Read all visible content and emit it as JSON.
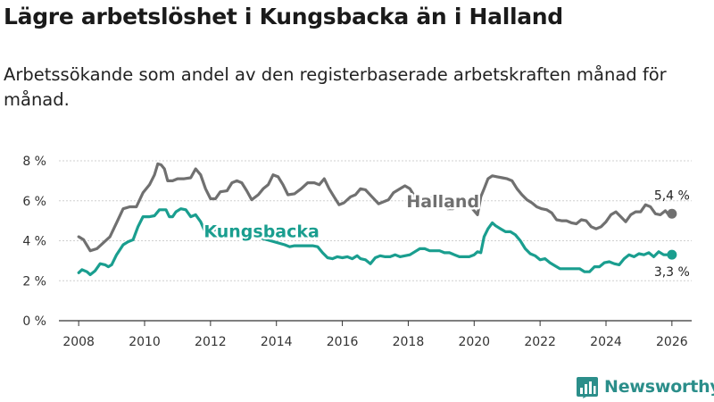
{
  "page": {
    "title": "Lägre arbetslöshet i Kungsbacka än i Halland",
    "subtitle": "Arbetssökande som andel av den registerbaserade arbetskraften månad för månad.",
    "brand": "Newsworthy"
  },
  "colors": {
    "halland": "#707070",
    "kungsbacka": "#1a9e8f",
    "axis": "#333333",
    "grid": "#cfcfcf",
    "brand": "#2b8e8a"
  },
  "chart_data": {
    "type": "line",
    "title": "Lägre arbetslöshet i Kungsbacka än i Halland",
    "xlabel": "",
    "ylabel": "",
    "xlim": [
      2007.4,
      2026.6
    ],
    "ylim": [
      0,
      8
    ],
    "y_ticks": [
      0,
      2,
      4,
      6,
      8
    ],
    "y_tick_labels": [
      "0 %",
      "2 %",
      "4 %",
      "6 %",
      "8 %"
    ],
    "x_ticks": [
      2008,
      2010,
      2012,
      2014,
      2016,
      2018,
      2020,
      2022,
      2024,
      2026
    ],
    "x_tick_labels": [
      "2008",
      "2010",
      "2012",
      "2014",
      "2016",
      "2018",
      "2020",
      "2022",
      "2024",
      "2026"
    ],
    "grid": "horizontal",
    "series": [
      {
        "name": "Halland",
        "color": "#707070",
        "end_label": "5,4 %",
        "points": [
          [
            2008.0,
            4.2
          ],
          [
            2008.15,
            4.05
          ],
          [
            2008.35,
            3.5
          ],
          [
            2008.55,
            3.6
          ],
          [
            2008.75,
            3.9
          ],
          [
            2008.95,
            4.2
          ],
          [
            2009.15,
            4.9
          ],
          [
            2009.35,
            5.6
          ],
          [
            2009.55,
            5.7
          ],
          [
            2009.75,
            5.7
          ],
          [
            2009.95,
            6.4
          ],
          [
            2010.15,
            6.8
          ],
          [
            2010.3,
            7.3
          ],
          [
            2010.4,
            7.85
          ],
          [
            2010.5,
            7.8
          ],
          [
            2010.6,
            7.6
          ],
          [
            2010.7,
            7.0
          ],
          [
            2010.85,
            7.0
          ],
          [
            2011.0,
            7.1
          ],
          [
            2011.2,
            7.1
          ],
          [
            2011.4,
            7.15
          ],
          [
            2011.55,
            7.6
          ],
          [
            2011.7,
            7.3
          ],
          [
            2011.85,
            6.6
          ],
          [
            2012.0,
            6.1
          ],
          [
            2012.15,
            6.1
          ],
          [
            2012.3,
            6.45
          ],
          [
            2012.5,
            6.5
          ],
          [
            2012.65,
            6.9
          ],
          [
            2012.8,
            7.0
          ],
          [
            2012.95,
            6.9
          ],
          [
            2013.1,
            6.5
          ],
          [
            2013.25,
            6.05
          ],
          [
            2013.45,
            6.3
          ],
          [
            2013.6,
            6.6
          ],
          [
            2013.75,
            6.8
          ],
          [
            2013.9,
            7.3
          ],
          [
            2014.05,
            7.2
          ],
          [
            2014.2,
            6.8
          ],
          [
            2014.35,
            6.3
          ],
          [
            2014.55,
            6.35
          ],
          [
            2014.75,
            6.6
          ],
          [
            2014.95,
            6.9
          ],
          [
            2015.15,
            6.9
          ],
          [
            2015.3,
            6.8
          ],
          [
            2015.45,
            7.1
          ],
          [
            2015.6,
            6.6
          ],
          [
            2015.75,
            6.2
          ],
          [
            2015.9,
            5.8
          ],
          [
            2016.05,
            5.9
          ],
          [
            2016.25,
            6.2
          ],
          [
            2016.4,
            6.3
          ],
          [
            2016.55,
            6.6
          ],
          [
            2016.7,
            6.55
          ],
          [
            2016.9,
            6.2
          ],
          [
            2017.1,
            5.85
          ],
          [
            2017.25,
            5.95
          ],
          [
            2017.4,
            6.05
          ],
          [
            2017.55,
            6.4
          ],
          [
            2017.75,
            6.6
          ],
          [
            2017.9,
            6.75
          ],
          [
            2018.05,
            6.6
          ],
          [
            2018.2,
            6.2
          ],
          [
            2018.35,
            5.95
          ],
          [
            2018.5,
            6.0
          ],
          [
            2018.7,
            6.15
          ],
          [
            2018.9,
            6.15
          ],
          [
            2019.05,
            5.9
          ],
          [
            2019.2,
            5.6
          ],
          [
            2019.35,
            5.6
          ],
          [
            2019.55,
            5.85
          ],
          [
            2019.75,
            5.85
          ],
          [
            2019.95,
            5.6
          ],
          [
            2020.1,
            5.3
          ],
          [
            2020.2,
            6.2
          ],
          [
            2020.3,
            6.6
          ],
          [
            2020.42,
            7.1
          ],
          [
            2020.55,
            7.25
          ],
          [
            2020.7,
            7.2
          ],
          [
            2020.85,
            7.15
          ],
          [
            2021.0,
            7.1
          ],
          [
            2021.15,
            7.0
          ],
          [
            2021.3,
            6.6
          ],
          [
            2021.45,
            6.3
          ],
          [
            2021.6,
            6.05
          ],
          [
            2021.75,
            5.9
          ],
          [
            2021.9,
            5.7
          ],
          [
            2022.05,
            5.6
          ],
          [
            2022.2,
            5.55
          ],
          [
            2022.35,
            5.4
          ],
          [
            2022.5,
            5.05
          ],
          [
            2022.65,
            5.0
          ],
          [
            2022.8,
            5.0
          ],
          [
            2022.95,
            4.9
          ],
          [
            2023.1,
            4.85
          ],
          [
            2023.25,
            5.05
          ],
          [
            2023.4,
            5.0
          ],
          [
            2023.55,
            4.7
          ],
          [
            2023.7,
            4.6
          ],
          [
            2023.85,
            4.7
          ],
          [
            2024.0,
            4.95
          ],
          [
            2024.15,
            5.3
          ],
          [
            2024.3,
            5.45
          ],
          [
            2024.45,
            5.2
          ],
          [
            2024.6,
            4.95
          ],
          [
            2024.75,
            5.3
          ],
          [
            2024.9,
            5.45
          ],
          [
            2025.05,
            5.45
          ],
          [
            2025.2,
            5.8
          ],
          [
            2025.35,
            5.7
          ],
          [
            2025.5,
            5.35
          ],
          [
            2025.65,
            5.3
          ],
          [
            2025.8,
            5.5
          ],
          [
            2025.9,
            5.3
          ],
          [
            2026.0,
            5.35
          ]
        ]
      },
      {
        "name": "Kungsbacka",
        "color": "#1a9e8f",
        "end_label": "3,3 %",
        "points": [
          [
            2008.0,
            2.4
          ],
          [
            2008.1,
            2.55
          ],
          [
            2008.25,
            2.45
          ],
          [
            2008.35,
            2.3
          ],
          [
            2008.5,
            2.5
          ],
          [
            2008.65,
            2.85
          ],
          [
            2008.8,
            2.8
          ],
          [
            2008.9,
            2.7
          ],
          [
            2009.0,
            2.8
          ],
          [
            2009.15,
            3.3
          ],
          [
            2009.35,
            3.8
          ],
          [
            2009.5,
            3.95
          ],
          [
            2009.65,
            4.05
          ],
          [
            2009.8,
            4.7
          ],
          [
            2009.95,
            5.2
          ],
          [
            2010.15,
            5.2
          ],
          [
            2010.3,
            5.25
          ],
          [
            2010.45,
            5.55
          ],
          [
            2010.55,
            5.55
          ],
          [
            2010.65,
            5.55
          ],
          [
            2010.75,
            5.2
          ],
          [
            2010.85,
            5.2
          ],
          [
            2010.95,
            5.45
          ],
          [
            2011.1,
            5.6
          ],
          [
            2011.25,
            5.55
          ],
          [
            2011.4,
            5.2
          ],
          [
            2011.55,
            5.3
          ],
          [
            2011.7,
            4.95
          ],
          [
            2011.85,
            4.4
          ],
          [
            2011.95,
            4.15
          ],
          [
            2012.15,
            4.6
          ],
          [
            2012.3,
            4.55
          ],
          [
            2012.45,
            4.45
          ],
          [
            2012.6,
            4.5
          ],
          [
            2012.75,
            4.5
          ],
          [
            2014.25,
            3.8
          ],
          [
            2014.4,
            3.7
          ],
          [
            2014.55,
            3.75
          ],
          [
            2014.75,
            3.75
          ],
          [
            2014.95,
            3.75
          ],
          [
            2015.1,
            3.75
          ],
          [
            2015.25,
            3.7
          ],
          [
            2015.4,
            3.4
          ],
          [
            2015.55,
            3.15
          ],
          [
            2015.7,
            3.1
          ],
          [
            2015.85,
            3.2
          ],
          [
            2016.0,
            3.15
          ],
          [
            2016.15,
            3.2
          ],
          [
            2016.3,
            3.1
          ],
          [
            2016.45,
            3.25
          ],
          [
            2016.55,
            3.1
          ],
          [
            2016.7,
            3.05
          ],
          [
            2016.85,
            2.85
          ],
          [
            2017.0,
            3.15
          ],
          [
            2017.15,
            3.25
          ],
          [
            2017.3,
            3.2
          ],
          [
            2017.45,
            3.2
          ],
          [
            2017.6,
            3.3
          ],
          [
            2017.75,
            3.2
          ],
          [
            2017.9,
            3.25
          ],
          [
            2018.05,
            3.3
          ],
          [
            2018.2,
            3.45
          ],
          [
            2018.35,
            3.6
          ],
          [
            2018.5,
            3.6
          ],
          [
            2018.65,
            3.5
          ],
          [
            2018.8,
            3.5
          ],
          [
            2018.95,
            3.5
          ],
          [
            2019.1,
            3.4
          ],
          [
            2019.25,
            3.4
          ],
          [
            2019.4,
            3.3
          ],
          [
            2019.55,
            3.2
          ],
          [
            2019.7,
            3.2
          ],
          [
            2019.85,
            3.2
          ],
          [
            2020.0,
            3.3
          ],
          [
            2020.1,
            3.45
          ],
          [
            2020.2,
            3.4
          ],
          [
            2020.3,
            4.2
          ],
          [
            2020.42,
            4.6
          ],
          [
            2020.55,
            4.9
          ],
          [
            2020.65,
            4.75
          ],
          [
            2020.8,
            4.6
          ],
          [
            2020.95,
            4.45
          ],
          [
            2021.1,
            4.45
          ],
          [
            2021.25,
            4.3
          ],
          [
            2021.4,
            4.0
          ],
          [
            2021.55,
            3.6
          ],
          [
            2021.7,
            3.35
          ],
          [
            2021.85,
            3.25
          ],
          [
            2022.0,
            3.05
          ],
          [
            2022.15,
            3.1
          ],
          [
            2022.3,
            2.9
          ],
          [
            2022.45,
            2.75
          ],
          [
            2022.6,
            2.6
          ],
          [
            2022.75,
            2.6
          ],
          [
            2022.9,
            2.6
          ],
          [
            2023.05,
            2.6
          ],
          [
            2023.2,
            2.6
          ],
          [
            2023.35,
            2.45
          ],
          [
            2023.5,
            2.45
          ],
          [
            2023.65,
            2.7
          ],
          [
            2023.8,
            2.7
          ],
          [
            2023.95,
            2.9
          ],
          [
            2024.1,
            2.95
          ],
          [
            2024.25,
            2.85
          ],
          [
            2024.4,
            2.8
          ],
          [
            2024.55,
            3.1
          ],
          [
            2024.7,
            3.3
          ],
          [
            2024.85,
            3.2
          ],
          [
            2025.0,
            3.35
          ],
          [
            2025.15,
            3.3
          ],
          [
            2025.3,
            3.4
          ],
          [
            2025.45,
            3.2
          ],
          [
            2025.6,
            3.45
          ],
          [
            2025.75,
            3.3
          ],
          [
            2025.9,
            3.3
          ],
          [
            2026.0,
            3.3
          ]
        ]
      }
    ],
    "annotations": [
      {
        "series": "Halland",
        "text": "Halland",
        "x": 2019.05,
        "y": 6.0
      },
      {
        "series": "Kungsbacka",
        "text": "Kungsbacka",
        "x": 2013.55,
        "y": 4.5
      }
    ]
  }
}
